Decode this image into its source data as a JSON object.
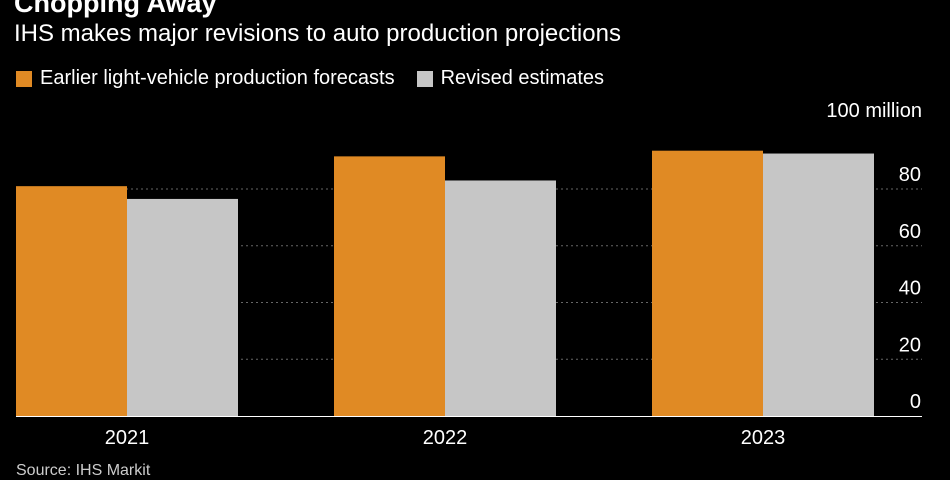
{
  "chart_data": {
    "type": "bar",
    "title": "Chopping Away",
    "subtitle": "IHS makes major revisions to auto production projections",
    "unit_label": "100 million",
    "categories": [
      "2021",
      "2022",
      "2023"
    ],
    "series": [
      {
        "name": "Earlier light-vehicle production forecasts",
        "color": "#e08a24",
        "values": [
          81,
          91.5,
          93.5
        ]
      },
      {
        "name": "Revised estimates",
        "color": "#c6c6c6",
        "values": [
          76.5,
          83,
          92.5
        ]
      }
    ],
    "ylim": [
      0,
      100
    ],
    "yticks": [
      0,
      20,
      40,
      60,
      80
    ],
    "ytick_labels": [
      "0",
      "20",
      "40",
      "60",
      "80"
    ],
    "grid": true,
    "legend_position": "top-left",
    "xlabel": "",
    "ylabel": ""
  },
  "footer": {
    "source": "Source: IHS Markit"
  }
}
